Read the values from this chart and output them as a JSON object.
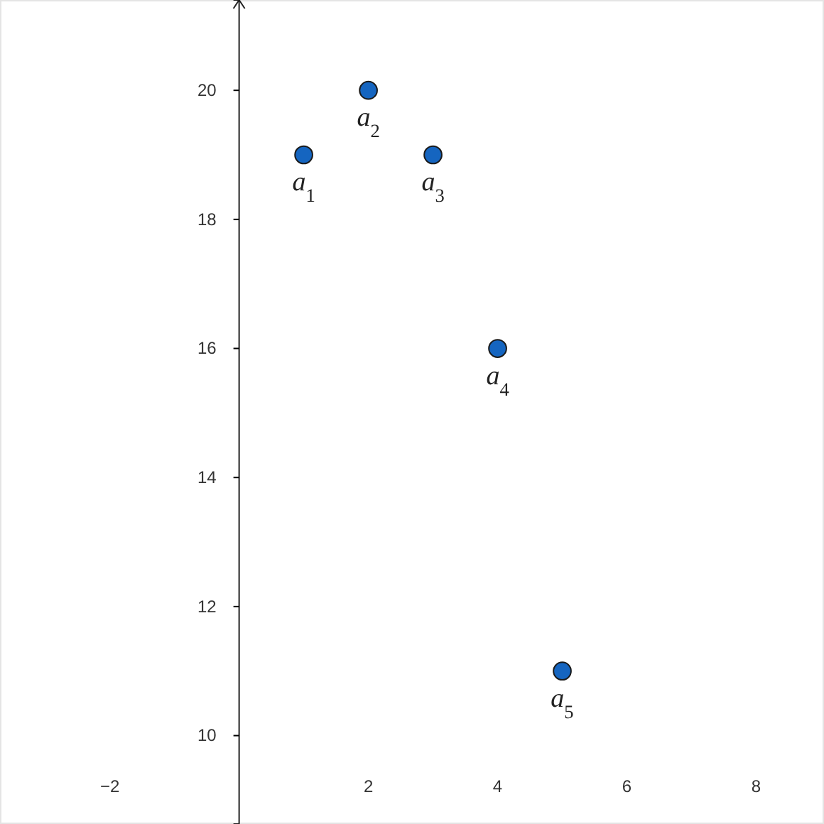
{
  "chart_data": {
    "type": "scatter",
    "x": [
      1,
      2,
      3,
      4,
      5
    ],
    "values": [
      19,
      20,
      19,
      16,
      11
    ],
    "color": "#1565c0",
    "marker": "circle",
    "grid": false,
    "xlim": [
      -3.7,
      9.05
    ],
    "ylim": [
      8.63,
      21.4
    ],
    "xticks": [
      -2,
      2,
      4,
      6,
      8
    ],
    "yticks": [
      10,
      12,
      14,
      16,
      18,
      20
    ],
    "annotations": [
      {
        "text": "a$_{1}$",
        "x": 1,
        "y": 19
      },
      {
        "text": "a$_{2}$",
        "x": 2,
        "y": 20
      },
      {
        "text": "a$_{3}$",
        "x": 3,
        "y": 19
      },
      {
        "text": "a$_{4}$",
        "x": 4,
        "y": 16
      },
      {
        "text": "a$_{5}$",
        "x": 5,
        "y": 11
      }
    ]
  }
}
